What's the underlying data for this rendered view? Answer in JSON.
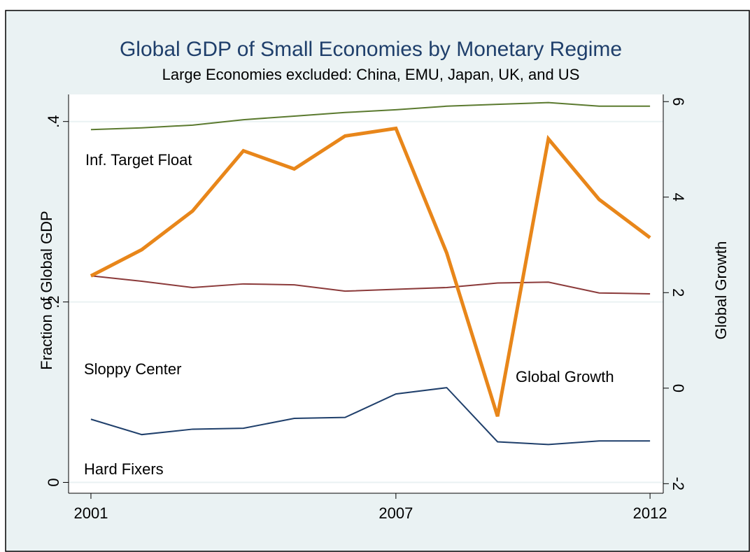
{
  "chart_data": {
    "type": "line",
    "title": "Global GDP of Small Economies by Monetary Regime",
    "subtitle": "Large Economies excluded: China, EMU, Japan, UK, and US",
    "ylabel": "Fraction of Global GDP",
    "y2label": "Global Growth",
    "x": [
      2001,
      2002,
      2003,
      2004,
      2005,
      2006,
      2007,
      2008,
      2009,
      2010,
      2011,
      2012
    ],
    "xlim": [
      2000.56,
      2012.26
    ],
    "xticks": [
      2001,
      2007,
      2012
    ],
    "ylim": [
      -0.012,
      0.43
    ],
    "yticks": [
      0,
      {
        "value": 0.2,
        "label": ".2"
      },
      {
        "value": 0.4,
        "label": ".4"
      }
    ],
    "y2lim": [
      -2.2,
      6.15
    ],
    "y2ticks": [
      -2,
      0,
      2,
      4,
      6
    ],
    "grid": true,
    "series": [
      {
        "name": "Inf. Target Float",
        "color": "#5b7a2f",
        "values": [
          0.391,
          0.393,
          0.396,
          0.402,
          0.406,
          0.41,
          0.413,
          0.417,
          0.419,
          0.421,
          0.417,
          0.417
        ]
      },
      {
        "name": "Sloppy Center",
        "color": "#8b3a3a",
        "values": [
          0.229,
          0.223,
          0.216,
          0.22,
          0.219,
          0.212,
          0.214,
          0.216,
          0.221,
          0.222,
          0.21,
          0.209
        ]
      },
      {
        "name": "Hard Fixers",
        "color": "#1f3f6b",
        "values": [
          0.07,
          0.053,
          0.059,
          0.06,
          0.071,
          0.072,
          0.098,
          0.105,
          0.045,
          0.042,
          0.046,
          0.046
        ]
      },
      {
        "name": "Global Growth",
        "color": "#e8861a",
        "axis": "y2",
        "values": [
          2.35,
          2.9,
          3.71,
          4.97,
          4.59,
          5.28,
          5.44,
          2.83,
          -0.59,
          5.22,
          3.95,
          3.15
        ]
      }
    ]
  }
}
